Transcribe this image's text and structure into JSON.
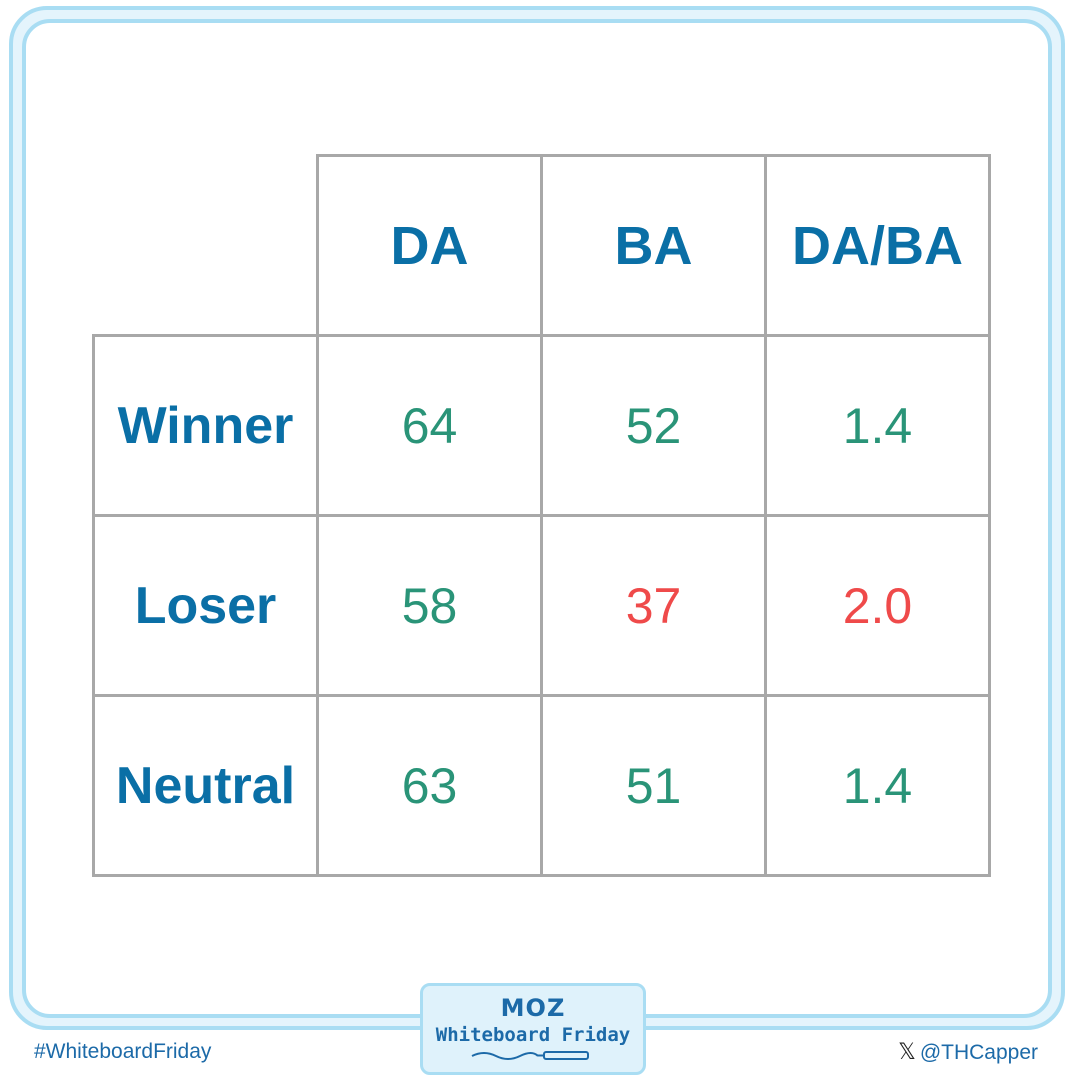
{
  "table": {
    "columns": [
      "DA",
      "BA",
      "DA/BA"
    ],
    "rows": [
      {
        "label": "Winner",
        "values": [
          "64",
          "52",
          "1.4"
        ]
      },
      {
        "label": "Loser",
        "values": [
          "58",
          "37",
          "2.0"
        ]
      },
      {
        "label": "Neutral",
        "values": [
          "63",
          "51",
          "1.4"
        ]
      }
    ],
    "colors": {
      "positive": "#2a9478",
      "negative": "#ef4a4a",
      "header": "#0a6fa6"
    }
  },
  "footer": {
    "hashtag": "#WhiteboardFriday",
    "handle": "@THCapper",
    "handle_icon": "x-logo-icon",
    "badge_logo": "MOZ",
    "badge_title": "Whiteboard Friday"
  }
}
